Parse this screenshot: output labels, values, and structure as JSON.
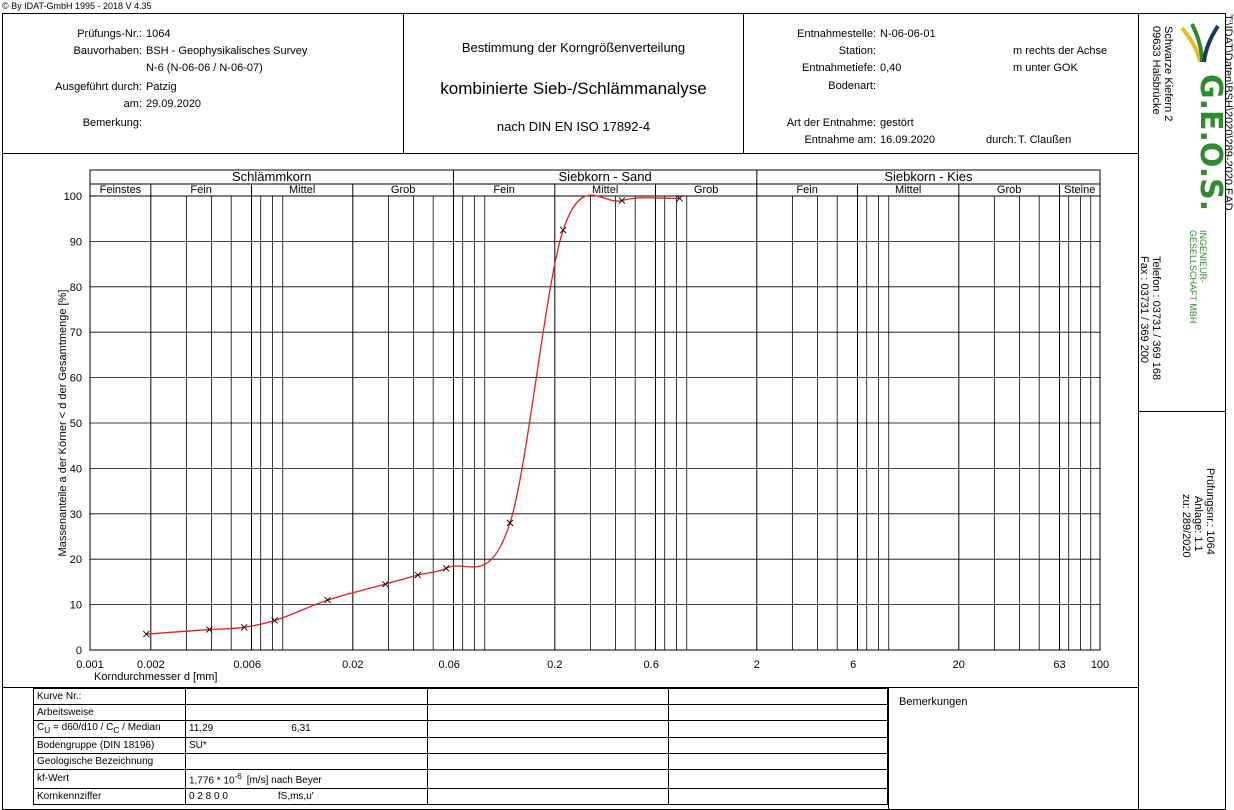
{
  "copyright": "© By IDAT-GmbH 1995 - 2018  V 4.35",
  "header": {
    "pruefungsnr_label": "Prüfungs-Nr.:",
    "pruefungsnr": "1064",
    "bauvorhaben_label": "Bauvorhaben:",
    "bauvorhaben_1": "BSH -  Geophysikalisches Survey",
    "bauvorhaben_2": "N-6 (N-06-06 / N-06-07)",
    "ausgefuehrt_label": "Ausgeführt durch:",
    "ausgefuehrt": "Patzig",
    "am_label": "am:",
    "am": "29.09.2020",
    "bemerkung_label": "Bemerkung:",
    "title_1": "Bestimmung der Korngrößenverteilung",
    "title_2": "kombinierte Sieb-/Schlämmanalyse",
    "title_3": "nach DIN EN ISO 17892-4",
    "entnahmestelle_label": "Entnahmestelle:",
    "entnahmestelle": "N-06-06-01",
    "station_label": "Station:",
    "station_unit": "m rechts der Achse",
    "entnahmetiefe_label": "Entnahmetiefe:",
    "entnahmetiefe": "0,40",
    "entnahmetiefe_unit": "m unter GOK",
    "bodenart_label": "Bodenart:",
    "art_label": "Art der Entnahme:",
    "art": "gestört",
    "entnahme_am_label": "Entnahme am:",
    "entnahme_am": "16.09.2020",
    "durch_label": "durch:",
    "durch": "T. Claußen"
  },
  "sidebar": {
    "address_1": "Schwarze Kiefern 2",
    "address_2": "09633 Halsbrücke",
    "logo_text": "G.E.O.S.",
    "logo_sub_1": "INGENIEUR-",
    "logo_sub_2": "GESELLSCHAFT MBH",
    "telefon": "Telefon : 03731 / 369 168",
    "fax": "Fax       : 03731 / 369 200",
    "pruefungsnr": "Prüfungsnr.: 1064",
    "anlage": "Anlage: 1.1",
    "zu": "zu: 289/2020",
    "file": "T:\\IDAT\\Daten\\BSH\\2020\\289-2020.EAD",
    "colors": {
      "green": "#2e8b2e",
      "dark": "#1a3a5c",
      "yellow": "#e0c020"
    }
  },
  "chart_data": {
    "type": "line",
    "xscale": "log",
    "xlim": [
      0.001,
      100
    ],
    "ylim": [
      0,
      100
    ],
    "xlabel": "Korndurchmesser d [mm]",
    "ylabel": "Massenanteile a der Körner < d der Gesamtmenge [%]",
    "x_tick_labels": [
      "0.001",
      "0.002",
      "0.006",
      "0.02",
      "0.06",
      "0.2",
      "0.6",
      "2",
      "6",
      "20",
      "63",
      "100"
    ],
    "x_ticks": [
      0.001,
      0.002,
      0.006,
      0.02,
      0.06,
      0.2,
      0.6,
      2,
      6,
      20,
      63,
      100
    ],
    "y_ticks": [
      0,
      10,
      20,
      30,
      40,
      50,
      60,
      70,
      80,
      90,
      100
    ],
    "minor_x": [
      0.003,
      0.004,
      0.005,
      0.007,
      0.008,
      0.009,
      0.03,
      0.04,
      0.05,
      0.07,
      0.08,
      0.09,
      0.3,
      0.4,
      0.5,
      0.7,
      0.8,
      0.9,
      3,
      4,
      5,
      7,
      8,
      9,
      30,
      40,
      50,
      70,
      80,
      90
    ],
    "groups": [
      {
        "name": "Schlämmkorn",
        "from": 0.001,
        "to": 0.063
      },
      {
        "name": "Siebkorn - Sand",
        "from": 0.063,
        "to": 2
      },
      {
        "name": "Siebkorn - Kies",
        "from": 2,
        "to": 100
      }
    ],
    "subgroups": [
      {
        "name": "Feinstes",
        "from": 0.001,
        "to": 0.002
      },
      {
        "name": "Fein",
        "from": 0.002,
        "to": 0.0063
      },
      {
        "name": "Mittel",
        "from": 0.0063,
        "to": 0.02
      },
      {
        "name": "Grob",
        "from": 0.02,
        "to": 0.063
      },
      {
        "name": "Fein",
        "from": 0.063,
        "to": 0.2
      },
      {
        "name": "Mittel",
        "from": 0.2,
        "to": 0.63
      },
      {
        "name": "Grob",
        "from": 0.63,
        "to": 2
      },
      {
        "name": "Fein",
        "from": 2,
        "to": 6.3
      },
      {
        "name": "Mittel",
        "from": 6.3,
        "to": 20
      },
      {
        "name": "Grob",
        "from": 20,
        "to": 63
      },
      {
        "name": "Steine",
        "from": 63,
        "to": 100
      }
    ],
    "series": [
      {
        "color": "#e02020",
        "x": [
          0.0019,
          0.0039,
          0.0058,
          0.0082,
          0.015,
          0.029,
          0.042,
          0.058,
          0.12,
          0.22,
          0.43,
          0.83
        ],
        "y": [
          3.5,
          4.5,
          5,
          6.5,
          11,
          14.5,
          16.5,
          18,
          28,
          92.5,
          99,
          99.5
        ]
      }
    ]
  },
  "bottom": {
    "rows": [
      {
        "label": "Kurve Nr.:",
        "v1": "",
        "v2": ""
      },
      {
        "label": "Arbeitsweise",
        "v1": "",
        "v2": ""
      },
      {
        "label": "C",
        "v1": "11,29",
        "v2": "6,31"
      },
      {
        "label": "Bodengruppe (DIN 18196)",
        "v1": "SU*",
        "v2": ""
      },
      {
        "label": "Geologische Bezeichnung",
        "v1": "",
        "v2": ""
      },
      {
        "label": "kf-Wert",
        "v1": "1,776 * 10",
        "v2": "[m/s] nach Beyer"
      },
      {
        "label": "Kornkennziffer",
        "v1": "0 2 8 0 0",
        "v2": "fS,ms,u'"
      }
    ],
    "cu_label_sub1": "U",
    "cu_label_mid": " = d60/d10 / C",
    "cu_label_sub2": "C",
    "cu_label_end": "  / Median",
    "kf_exp": "-6",
    "bemerkungen": "Bemerkungen"
  }
}
